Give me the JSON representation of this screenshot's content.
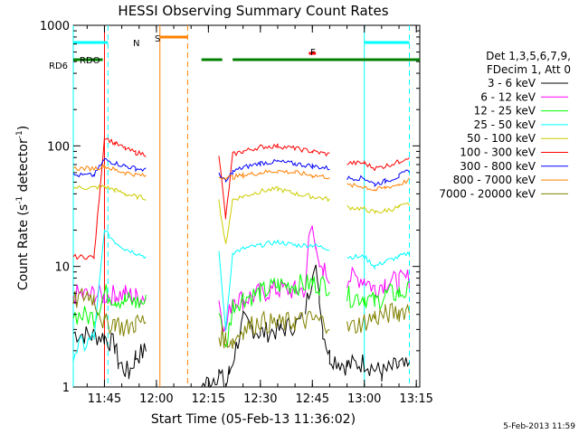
{
  "chart_data": {
    "type": "line",
    "title": "HESSI Observing Summary Count Rates",
    "xlabel": "Start Time (05-Feb-13 11:36:02)",
    "ylabel_main": "Count Rate (s",
    "ylabel_sup1": "-1",
    "ylabel_mid": " detector",
    "ylabel_sup2": "-1",
    "ylabel_end": ")",
    "yscale": "log",
    "xlim": [
      "11:36",
      "13:16"
    ],
    "ylim": [
      1,
      1000
    ],
    "xticks": [
      "11:45",
      "12:00",
      "12:15",
      "12:30",
      "12:45",
      "13:00",
      "13:15"
    ],
    "yticks": [
      "1",
      "10",
      "100",
      "1000"
    ],
    "legend_header": [
      "Det 1,3,5,6,7,9,",
      "FDecim 1, Att 0"
    ],
    "legend_position": "right",
    "series": [
      {
        "name": "3 - 6 keV",
        "color": "#000000",
        "segments": [
          {
            "x": [
              "11:36",
              "11:45",
              "11:48",
              "11:49",
              "11:52",
              "11:54",
              "11:57"
            ],
            "y": [
              2.8,
              2.6,
              2.2,
              1.6,
              1.3,
              1.8,
              2.0
            ]
          },
          {
            "x": [
              "12:13",
              "12:18",
              "12:20",
              "12:21",
              "12:25",
              "12:30",
              "12:36",
              "12:42"
            ],
            "y": [
              1.0,
              1.3,
              1.0,
              1.3,
              3.5,
              2.8,
              3.0,
              3.5
            ]
          },
          {
            "x": [
              "12:43",
              "12:45",
              "12:46",
              "12:47",
              "12:48",
              "12:50",
              "12:55",
              "13:00",
              "13:05",
              "13:10",
              "13:13"
            ],
            "y": [
              4.5,
              8.5,
              10.0,
              6.0,
              3.0,
              1.8,
              1.5,
              1.6,
              1.3,
              1.5,
              1.4
            ]
          }
        ]
      },
      {
        "name": "6 - 12 keV",
        "color": "#ff00ff",
        "segments": [
          {
            "x": [
              "11:36",
              "11:42",
              "11:45",
              "11:48",
              "11:51",
              "11:54",
              "11:57"
            ],
            "y": [
              5.8,
              5.8,
              5.7,
              5.8,
              5.9,
              5.6,
              5.7
            ]
          },
          {
            "x": [
              "12:18",
              "12:20",
              "12:22",
              "12:25",
              "12:30",
              "12:35",
              "12:40",
              "12:43",
              "12:44",
              "12:45",
              "12:46",
              "12:47",
              "12:48",
              "12:50"
            ],
            "y": [
              5.2,
              3.0,
              5.6,
              5.3,
              6.0,
              6.5,
              6.3,
              6.5,
              18,
              22,
              14,
              10,
              9.5,
              8.0
            ]
          },
          {
            "x": [
              "12:55",
              "13:00",
              "13:03",
              "13:06",
              "13:10",
              "13:13"
            ],
            "y": [
              8.0,
              8.0,
              6.5,
              7.5,
              7.5,
              8.0
            ]
          }
        ]
      },
      {
        "name": "12 - 25 keV",
        "color": "#00ff00",
        "segments": [
          {
            "x": [
              "11:36",
              "11:42",
              "11:45",
              "11:48",
              "11:51",
              "11:54",
              "11:57"
            ],
            "y": [
              4.0,
              3.8,
              6.0,
              5.5,
              5.2,
              5.0,
              5.0
            ]
          },
          {
            "x": [
              "12:18",
              "12:20",
              "12:22",
              "12:25",
              "12:30",
              "12:35",
              "12:40",
              "12:45",
              "12:50"
            ],
            "y": [
              4.8,
              2.0,
              4.8,
              5.5,
              6.0,
              7.0,
              7.0,
              7.2,
              7.0
            ]
          },
          {
            "x": [
              "12:55",
              "13:00",
              "13:03",
              "13:06",
              "13:10",
              "13:13"
            ],
            "y": [
              5.6,
              5.6,
              5.0,
              5.8,
              6.0,
              6.2
            ]
          }
        ]
      },
      {
        "name": "25 - 50 keV",
        "color": "#00ffff",
        "segments": [
          {
            "x": [
              "11:36",
              "11:42",
              "11:45",
              "11:48",
              "11:51",
              "11:54",
              "11:57"
            ],
            "y": [
              2.0,
              2.5,
              20,
              16,
              14,
              13,
              12
            ]
          },
          {
            "x": [
              "12:18",
              "12:20",
              "12:22",
              "12:25",
              "12:30",
              "12:35",
              "12:40",
              "12:45",
              "12:50"
            ],
            "y": [
              13,
              3.0,
              13,
              14,
              15,
              16,
              15,
              15,
              14
            ]
          },
          {
            "x": [
              "12:55",
              "13:00",
              "13:03",
              "13:06",
              "13:10",
              "13:13"
            ],
            "y": [
              12,
              12,
              10,
              11,
              12,
              13
            ]
          }
        ]
      },
      {
        "name": "50 - 100 keV",
        "color": "#cccc00",
        "segments": [
          {
            "x": [
              "11:36",
              "11:42",
              "11:45",
              "11:48",
              "11:51",
              "11:54",
              "11:57"
            ],
            "y": [
              45,
              45,
              46,
              43,
              40,
              38,
              37
            ]
          },
          {
            "x": [
              "12:18",
              "12:20",
              "12:22",
              "12:25",
              "12:30",
              "12:35",
              "12:40",
              "12:45",
              "12:50"
            ],
            "y": [
              35,
              15,
              36,
              38,
              42,
              44,
              40,
              38,
              36
            ]
          },
          {
            "x": [
              "12:55",
              "13:00",
              "13:03",
              "13:06",
              "13:10",
              "13:13"
            ],
            "y": [
              31,
              30,
              28,
              29,
              31,
              33
            ]
          }
        ]
      },
      {
        "name": "100 - 300 keV",
        "color": "#ff0000",
        "segments": [
          {
            "x": [
              "11:36",
              "11:42",
              "11:45",
              "11:48",
              "11:51",
              "11:54",
              "11:57"
            ],
            "y": [
              12,
              12,
              118,
              105,
              95,
              88,
              85
            ]
          },
          {
            "x": [
              "12:18",
              "12:20",
              "12:22",
              "12:25",
              "12:30",
              "12:35",
              "12:40",
              "12:45",
              "12:50"
            ],
            "y": [
              85,
              25,
              85,
              90,
              98,
              100,
              95,
              90,
              85
            ]
          },
          {
            "x": [
              "12:55",
              "13:00",
              "13:03",
              "13:06",
              "13:10",
              "13:13"
            ],
            "y": [
              72,
              72,
              65,
              68,
              74,
              82
            ]
          }
        ]
      },
      {
        "name": "300 - 800 keV",
        "color": "#0000ff",
        "segments": [
          {
            "x": [
              "11:36",
              "11:42",
              "11:45",
              "11:48",
              "11:51",
              "11:54",
              "11:57"
            ],
            "y": [
              57,
              57,
              77,
              72,
              68,
              65,
              63
            ]
          },
          {
            "x": [
              "12:18",
              "12:20",
              "12:22",
              "12:25",
              "12:30",
              "12:35",
              "12:40",
              "12:45",
              "12:50"
            ],
            "y": [
              60,
              50,
              61,
              66,
              72,
              74,
              71,
              68,
              65
            ]
          },
          {
            "x": [
              "12:55",
              "13:00",
              "13:03",
              "13:06",
              "13:10",
              "13:13"
            ],
            "y": [
              54,
              54,
              48,
              51,
              56,
              63
            ]
          }
        ]
      },
      {
        "name": "800 - 7000 keV",
        "color": "#ff8000",
        "segments": [
          {
            "x": [
              "11:36",
              "11:42",
              "11:45",
              "11:48",
              "11:51",
              "11:54",
              "11:57"
            ],
            "y": [
              65,
              65,
              68,
              63,
              60,
              58,
              56
            ]
          },
          {
            "x": [
              "12:18",
              "12:20",
              "12:22",
              "12:25",
              "12:30",
              "12:35",
              "12:40",
              "12:45",
              "12:50"
            ],
            "y": [
              55,
              55,
              55,
              57,
              60,
              62,
              60,
              57,
              55
            ]
          },
          {
            "x": [
              "12:55",
              "13:00",
              "13:03",
              "13:06",
              "13:10",
              "13:13"
            ],
            "y": [
              47,
              46,
              43,
              45,
              48,
              52
            ]
          }
        ]
      },
      {
        "name": "7000 - 20000 keV",
        "color": "#808000",
        "segments": [
          {
            "x": [
              "11:36",
              "11:40",
              "11:42",
              "11:45",
              "11:48",
              "11:51",
              "11:54",
              "11:57"
            ],
            "y": [
              5.0,
              6.0,
              5.5,
              3.3,
              3.5,
              3.0,
              3.4,
              3.5
            ]
          },
          {
            "x": [
              "12:18",
              "12:20",
              "12:22",
              "12:25",
              "12:30",
              "12:35",
              "12:40",
              "12:45",
              "12:50"
            ],
            "y": [
              2.7,
              2.5,
              2.4,
              3.0,
              3.5,
              3.3,
              3.5,
              3.6,
              3.4
            ]
          },
          {
            "x": [
              "12:55",
              "13:00",
              "13:03",
              "13:06",
              "13:10",
              "13:13"
            ],
            "y": [
              3.0,
              3.5,
              3.8,
              4.0,
              4.2,
              4.5
            ]
          }
        ]
      }
    ],
    "flags": [
      {
        "label": "RD6",
        "color": "#008000",
        "segments": [
          [
            "11:36",
            "11:44:30"
          ],
          [
            "12:13",
            "12:19"
          ],
          [
            "12:22",
            "13:16"
          ]
        ]
      },
      {
        "label": "RDO",
        "color": "#008000",
        "segments": [
          [
            "11:36",
            "11:36"
          ]
        ]
      },
      {
        "label": "N",
        "color": "#00ffff",
        "segments": [
          [
            "11:36",
            "11:46"
          ],
          [
            "13:00",
            "13:13"
          ]
        ]
      },
      {
        "label": "S",
        "color": "#ff8000",
        "segments": [
          [
            "12:01",
            "12:09"
          ]
        ]
      },
      {
        "label": "F",
        "color": "#ff0000",
        "segments": [
          [
            "12:44",
            "12:46"
          ]
        ]
      }
    ],
    "vlines": [
      {
        "x": "11:36",
        "color": "#00ffff",
        "style": "solid"
      },
      {
        "x": "11:45",
        "color": "#ff0000",
        "style": "solid"
      },
      {
        "x": "11:46",
        "color": "#00ffff",
        "style": "dashed"
      },
      {
        "x": "12:01",
        "color": "#ff8000",
        "style": "solid"
      },
      {
        "x": "12:09",
        "color": "#ff8000",
        "style": "dashed"
      },
      {
        "x": "13:00",
        "color": "#00ffff",
        "style": "solid"
      },
      {
        "x": "13:13",
        "color": "#00ffff",
        "style": "dashed"
      }
    ],
    "timestamp": "5-Feb-2013 11:59"
  }
}
